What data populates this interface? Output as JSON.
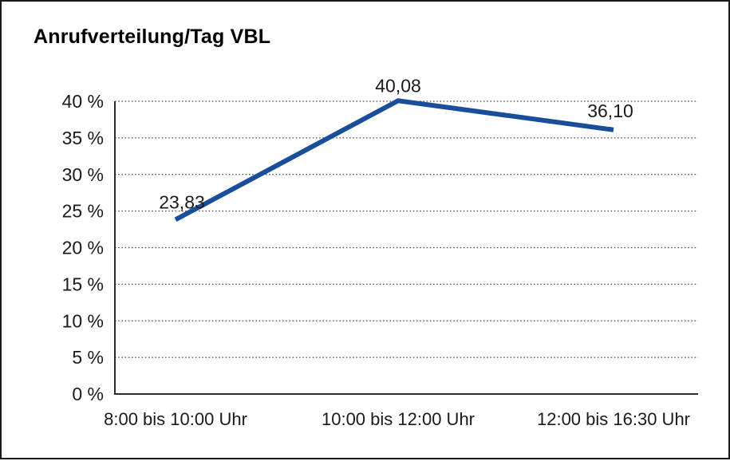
{
  "chart_data": {
    "type": "line",
    "title": "Anrufverteilung/Tag VBL",
    "categories": [
      "8:00 bis 10:00 Uhr",
      "10:00 bis 12:00 Uhr",
      "12:00 bis 16:30 Uhr"
    ],
    "values": [
      23.83,
      40.08,
      36.1
    ],
    "point_labels": [
      "23,83",
      "40,08",
      "36,10"
    ],
    "y_ticks": [
      "0 %",
      "5 %",
      "10 %",
      "15 %",
      "20 %",
      "25 %",
      "30 %",
      "35 %",
      "40 %"
    ],
    "ylim": [
      0,
      40
    ],
    "xlabel": "",
    "ylabel": "",
    "grid": "horizontal-dotted",
    "legend": "none",
    "line_color": "#1a4e9b",
    "axis_color": "#2b2b2b",
    "grid_color": "#4a4a4a",
    "text_color": "#1a1a1a",
    "frame_border_color": "#1a1a1a",
    "background": "#ffffff"
  }
}
